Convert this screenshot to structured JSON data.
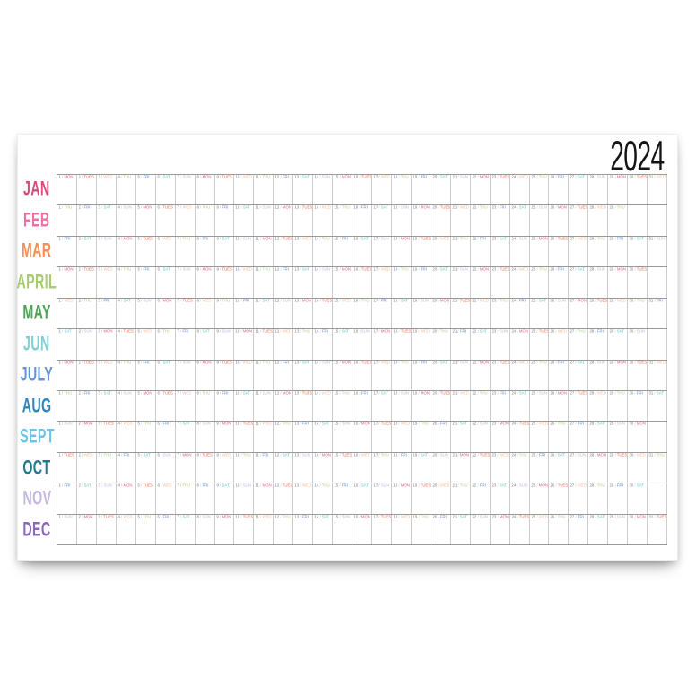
{
  "year": "2024",
  "weekday_colors": {
    "MON": "#e7588c",
    "TUES": "#ef6a4c",
    "WED": "#f4bd9b",
    "THU": "#a9d287",
    "FRI": "#5d87d2",
    "SAT": "#53c2cb",
    "SUN": "#c9b1dc"
  },
  "day_number_color": "#7d7d7d",
  "slash_color": "#bdbdbd",
  "grid_lines": {
    "row_color": "#9a9a9a",
    "cell_color": "#cccccc"
  },
  "columns": 31,
  "day_label_separator": "/",
  "months": [
    {
      "name": "JAN",
      "color": "#d84a7a",
      "days": [
        "MON",
        "TUES",
        "WED",
        "THU",
        "FRI",
        "SAT",
        "SUN",
        "MON",
        "TUES",
        "WED",
        "THU",
        "FRI",
        "SAT",
        "SUN",
        "MON",
        "TUES",
        "WED",
        "THU",
        "FRI",
        "SAT",
        "SUN",
        "MON",
        "TUES",
        "WED",
        "THU",
        "FRI",
        "SAT",
        "SUN",
        "MON",
        "TUES",
        "WED"
      ]
    },
    {
      "name": "FEB",
      "color": "#ee6fa5",
      "days": [
        "THU",
        "FRI",
        "SAT",
        "SUN",
        "MON",
        "TUES",
        "WED",
        "THU",
        "FRI",
        "SAT",
        "SUN",
        "MON",
        "TUES",
        "WED",
        "THU",
        "FRI",
        "SAT",
        "SUN",
        "MON",
        "TUES",
        "WED",
        "THU",
        "FRI",
        "SAT",
        "SUN",
        "MON",
        "TUES",
        "WED",
        "THU"
      ]
    },
    {
      "name": "MAR",
      "color": "#f29053",
      "days": [
        "FRI",
        "SAT",
        "SUN",
        "MON",
        "TUES",
        "WED",
        "THU",
        "FRI",
        "SAT",
        "SUN",
        "MON",
        "TUES",
        "WED",
        "THU",
        "FRI",
        "SAT",
        "SUN",
        "MON",
        "TUES",
        "WED",
        "THU",
        "FRI",
        "SAT",
        "SUN",
        "MON",
        "TUES",
        "WED",
        "THU",
        "FRI",
        "SAT",
        "SUN"
      ]
    },
    {
      "name": "APRIL",
      "color": "#a6cd6d",
      "days": [
        "MON",
        "TUES",
        "WED",
        "THU",
        "FRI",
        "SAT",
        "SUN",
        "MON",
        "TUES",
        "WED",
        "THU",
        "FRI",
        "SAT",
        "SUN",
        "MON",
        "TUES",
        "WED",
        "THU",
        "FRI",
        "SAT",
        "SUN",
        "MON",
        "TUES",
        "WED",
        "THU",
        "FRI",
        "SAT",
        "SUN",
        "MON",
        "TUES"
      ]
    },
    {
      "name": "MAY",
      "color": "#4ca455",
      "days": [
        "WED",
        "THU",
        "FRI",
        "SAT",
        "SUN",
        "MON",
        "TUES",
        "WED",
        "THU",
        "FRI",
        "SAT",
        "SUN",
        "MON",
        "TUES",
        "WED",
        "THU",
        "FRI",
        "SAT",
        "SUN",
        "MON",
        "TUES",
        "WED",
        "THU",
        "FRI",
        "SAT",
        "SUN",
        "MON",
        "TUES",
        "WED",
        "THU",
        "FRI"
      ]
    },
    {
      "name": "JUN",
      "color": "#7ed0d4",
      "days": [
        "SAT",
        "SUN",
        "MON",
        "TUES",
        "WED",
        "THU",
        "FRI",
        "SAT",
        "SUN",
        "MON",
        "TUES",
        "WED",
        "THU",
        "FRI",
        "SAT",
        "SUN",
        "MON",
        "TUES",
        "WED",
        "THU",
        "FRI",
        "SAT",
        "SUN",
        "MON",
        "TUES",
        "WED",
        "THU",
        "FRI",
        "SAT",
        "SUN"
      ]
    },
    {
      "name": "JULY",
      "color": "#6495d6",
      "days": [
        "MON",
        "TUES",
        "WED",
        "THU",
        "FRI",
        "SAT",
        "SUN",
        "MON",
        "TUES",
        "WED",
        "THU",
        "FRI",
        "SAT",
        "SUN",
        "MON",
        "TUES",
        "WED",
        "THU",
        "FRI",
        "SAT",
        "SUN",
        "MON",
        "TUES",
        "WED",
        "THU",
        "FRI",
        "SAT",
        "SUN",
        "MON",
        "TUES",
        "WED"
      ]
    },
    {
      "name": "AUG",
      "color": "#2f86bd",
      "days": [
        "THU",
        "FRI",
        "SAT",
        "SUN",
        "MON",
        "TUES",
        "WED",
        "THU",
        "FRI",
        "SAT",
        "SUN",
        "MON",
        "TUES",
        "WED",
        "THU",
        "FRI",
        "SAT",
        "SUN",
        "MON",
        "TUES",
        "WED",
        "THU",
        "FRI",
        "SAT",
        "SUN",
        "MON",
        "TUES",
        "WED",
        "THU",
        "FRI",
        "SAT"
      ]
    },
    {
      "name": "SEPT",
      "color": "#6ec3e8",
      "days": [
        "SUN",
        "MON",
        "TUES",
        "WED",
        "THU",
        "FRI",
        "SAT",
        "SUN",
        "MON",
        "TUES",
        "WED",
        "THU",
        "FRI",
        "SAT",
        "SUN",
        "MON",
        "TUES",
        "WED",
        "THU",
        "FRI",
        "SAT",
        "SUN",
        "MON",
        "TUES",
        "WED",
        "THU",
        "FRI",
        "SAT",
        "SUN",
        "MON"
      ]
    },
    {
      "name": "OCT",
      "color": "#23798e",
      "days": [
        "TUES",
        "WED",
        "THU",
        "FRI",
        "SAT",
        "SUN",
        "MON",
        "TUES",
        "WED",
        "THU",
        "FRI",
        "SAT",
        "SUN",
        "MON",
        "TUES",
        "WED",
        "THU",
        "FRI",
        "SAT",
        "SUN",
        "MON",
        "TUES",
        "WED",
        "THU",
        "FRI",
        "SAT",
        "SUN",
        "MON",
        "TUES",
        "WED",
        "THU"
      ]
    },
    {
      "name": "NOV",
      "color": "#c6b8de",
      "days": [
        "FRI",
        "SAT",
        "SUN",
        "MON",
        "TUES",
        "WED",
        "THU",
        "FRI",
        "SAT",
        "SUN",
        "MON",
        "TUES",
        "WED",
        "THU",
        "FRI",
        "SAT",
        "SUN",
        "MON",
        "TUES",
        "WED",
        "THU",
        "FRI",
        "SAT",
        "SUN",
        "MON",
        "TUES",
        "WED",
        "THU",
        "FRI",
        "SAT"
      ]
    },
    {
      "name": "DEC",
      "color": "#8a68bd",
      "days": [
        "SUN",
        "MON",
        "TUES",
        "WED",
        "THU",
        "FRI",
        "SAT",
        "SUN",
        "MON",
        "TUES",
        "WED",
        "THU",
        "FRI",
        "SAT",
        "SUN",
        "MON",
        "TUES",
        "WED",
        "THU",
        "FRI",
        "SAT",
        "SUN",
        "MON",
        "TUES",
        "WED",
        "THU",
        "FRI",
        "SAT",
        "SUN",
        "MON",
        "TUES"
      ]
    }
  ]
}
